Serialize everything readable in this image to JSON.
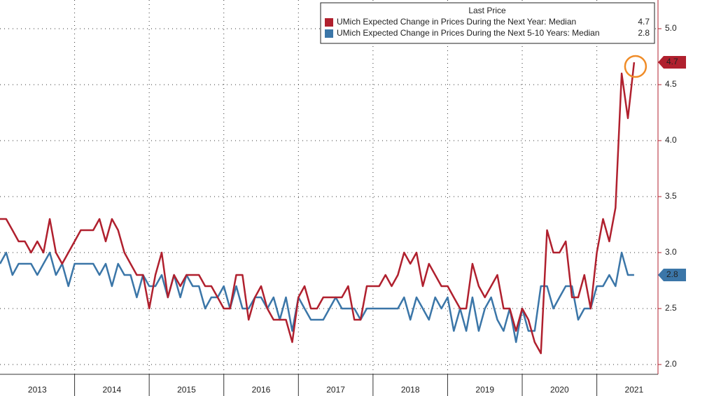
{
  "chart_data": {
    "type": "line",
    "legend_title": "Last Price",
    "xlim": [
      2013.0,
      2021.82
    ],
    "ylim": [
      1.9,
      5.25
    ],
    "yticks": [
      {
        "value": 2.0,
        "label": "2.0"
      },
      {
        "value": 2.5,
        "label": "2.5"
      },
      {
        "value": 3.0,
        "label": "3.0"
      },
      {
        "value": 3.5,
        "label": "3.5"
      },
      {
        "value": 4.0,
        "label": "4.0"
      },
      {
        "value": 4.5,
        "label": "4.5"
      },
      {
        "value": 5.0,
        "label": "5.0"
      }
    ],
    "xticks": [
      {
        "value": 2013.5,
        "label": "2013"
      },
      {
        "value": 2014.5,
        "label": "2014"
      },
      {
        "value": 2015.5,
        "label": "2015"
      },
      {
        "value": 2016.5,
        "label": "2016"
      },
      {
        "value": 2017.5,
        "label": "2017"
      },
      {
        "value": 2018.5,
        "label": "2018"
      },
      {
        "value": 2019.5,
        "label": "2019"
      },
      {
        "value": 2020.5,
        "label": "2020"
      },
      {
        "value": 2021.5,
        "label": "2021"
      }
    ],
    "grid": true,
    "x": [
      2013.0,
      2013.083,
      2013.167,
      2013.25,
      2013.333,
      2013.417,
      2013.5,
      2013.583,
      2013.667,
      2013.75,
      2013.833,
      2013.917,
      2014.0,
      2014.083,
      2014.167,
      2014.25,
      2014.333,
      2014.417,
      2014.5,
      2014.583,
      2014.667,
      2014.75,
      2014.833,
      2014.917,
      2015.0,
      2015.083,
      2015.167,
      2015.25,
      2015.333,
      2015.417,
      2015.5,
      2015.583,
      2015.667,
      2015.75,
      2015.833,
      2015.917,
      2016.0,
      2016.083,
      2016.167,
      2016.25,
      2016.333,
      2016.417,
      2016.5,
      2016.583,
      2016.667,
      2016.75,
      2016.833,
      2016.917,
      2017.0,
      2017.083,
      2017.167,
      2017.25,
      2017.333,
      2017.417,
      2017.5,
      2017.583,
      2017.667,
      2017.75,
      2017.833,
      2017.917,
      2018.0,
      2018.083,
      2018.167,
      2018.25,
      2018.333,
      2018.417,
      2018.5,
      2018.583,
      2018.667,
      2018.75,
      2018.833,
      2018.917,
      2019.0,
      2019.083,
      2019.167,
      2019.25,
      2019.333,
      2019.417,
      2019.5,
      2019.583,
      2019.667,
      2019.75,
      2019.833,
      2019.917,
      2020.0,
      2020.083,
      2020.167,
      2020.25,
      2020.333,
      2020.417,
      2020.5,
      2020.583,
      2020.667,
      2020.75,
      2020.833,
      2020.917,
      2021.0,
      2021.083,
      2021.167,
      2021.25,
      2021.333,
      2021.417,
      2021.5
    ],
    "series": [
      {
        "name": "UMich Expected Change in Prices During the Next Year: Median",
        "color": "#b0202e",
        "values": [
          3.3,
          3.3,
          3.2,
          3.1,
          3.1,
          3.0,
          3.1,
          3.0,
          3.3,
          3.0,
          2.9,
          3.0,
          3.1,
          3.2,
          3.2,
          3.2,
          3.3,
          3.1,
          3.3,
          3.2,
          3.0,
          2.9,
          2.8,
          2.8,
          2.5,
          2.8,
          3.0,
          2.6,
          2.8,
          2.7,
          2.8,
          2.8,
          2.8,
          2.7,
          2.7,
          2.6,
          2.5,
          2.5,
          2.8,
          2.8,
          2.4,
          2.6,
          2.7,
          2.5,
          2.4,
          2.4,
          2.4,
          2.2,
          2.6,
          2.7,
          2.5,
          2.5,
          2.6,
          2.6,
          2.6,
          2.6,
          2.7,
          2.4,
          2.4,
          2.7,
          2.7,
          2.7,
          2.8,
          2.7,
          2.8,
          3.0,
          2.9,
          3.0,
          2.7,
          2.9,
          2.8,
          2.7,
          2.7,
          2.6,
          2.5,
          2.5,
          2.9,
          2.7,
          2.6,
          2.7,
          2.8,
          2.5,
          2.5,
          2.3,
          2.5,
          2.4,
          2.2,
          2.1,
          3.2,
          3.0,
          3.0,
          3.1,
          2.6,
          2.6,
          2.8,
          2.5,
          3.0,
          3.3,
          3.1,
          3.4,
          4.6,
          4.2,
          4.7
        ]
      },
      {
        "name": "UMich Expected Change in Prices During the Next 5-10 Years: Median",
        "color": "#3b76a8",
        "values": [
          2.9,
          3.0,
          2.8,
          2.9,
          2.9,
          2.9,
          2.8,
          2.9,
          3.0,
          2.8,
          2.9,
          2.7,
          2.9,
          2.9,
          2.9,
          2.9,
          2.8,
          2.9,
          2.7,
          2.9,
          2.8,
          2.8,
          2.6,
          2.8,
          2.7,
          2.7,
          2.8,
          2.6,
          2.8,
          2.6,
          2.8,
          2.7,
          2.7,
          2.5,
          2.6,
          2.6,
          2.7,
          2.5,
          2.7,
          2.5,
          2.5,
          2.6,
          2.6,
          2.5,
          2.6,
          2.4,
          2.6,
          2.3,
          2.6,
          2.5,
          2.4,
          2.4,
          2.4,
          2.5,
          2.6,
          2.5,
          2.5,
          2.5,
          2.4,
          2.5,
          2.5,
          2.5,
          2.5,
          2.5,
          2.5,
          2.6,
          2.4,
          2.6,
          2.5,
          2.4,
          2.6,
          2.5,
          2.6,
          2.3,
          2.5,
          2.3,
          2.6,
          2.3,
          2.5,
          2.6,
          2.4,
          2.3,
          2.5,
          2.2,
          2.5,
          2.3,
          2.3,
          2.7,
          2.7,
          2.5,
          2.6,
          2.7,
          2.7,
          2.4,
          2.5,
          2.5,
          2.7,
          2.7,
          2.8,
          2.7,
          3.0,
          2.8,
          2.8
        ]
      }
    ]
  }
}
